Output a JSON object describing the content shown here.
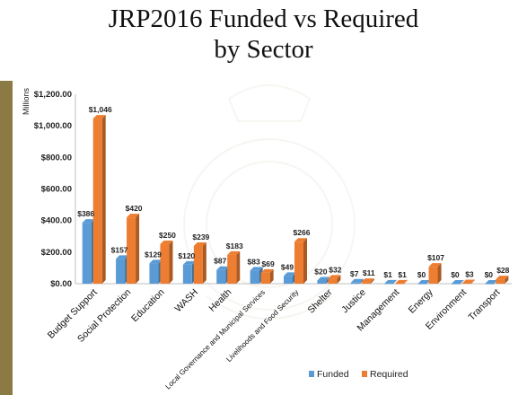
{
  "title_lines": [
    "JRP2016 Funded vs Required",
    "by Sector"
  ],
  "chart_data": {
    "type": "bar",
    "title": "JRP2016 Funded vs Required by Sector",
    "ylabel": "Millions",
    "ylim": [
      0,
      1200
    ],
    "yticks": [
      0,
      200,
      400,
      600,
      800,
      1000,
      1200
    ],
    "ytick_labels": [
      "$0.00",
      "$200.00",
      "$400.00",
      "$600.00",
      "$800.00",
      "$1,000.00",
      "$1,200.00"
    ],
    "categories": [
      "Budget Support",
      "Social Protection",
      "Education",
      "WASH",
      "Health",
      "Local Governance and Municipal Services",
      "Livelihoods and Food Security",
      "Shelter",
      "Justice",
      "Management",
      "Energy",
      "Environment",
      "Transport"
    ],
    "series": [
      {
        "name": "Funded",
        "color": "#5b9bd5",
        "values": [
          386,
          157,
          129,
          120,
          87,
          83,
          49,
          20,
          7,
          1,
          0,
          0,
          0
        ],
        "labels": [
          "$386",
          "$157",
          "$129",
          "$120",
          "$87",
          "$83",
          "$49",
          "$20",
          "$7",
          "$1",
          "$0",
          "$0",
          "$0"
        ]
      },
      {
        "name": "Required",
        "color": "#ed7d31",
        "values": [
          1046,
          420,
          250,
          239,
          183,
          69,
          266,
          32,
          11,
          1,
          107,
          3,
          28
        ],
        "labels": [
          "$1,046",
          "$420",
          "$250",
          "$239",
          "$183",
          "$69",
          "$266",
          "$32",
          "$11",
          "$1",
          "$107",
          "$3",
          "$28"
        ]
      }
    ],
    "grid": false,
    "legend_position": "bottom"
  }
}
